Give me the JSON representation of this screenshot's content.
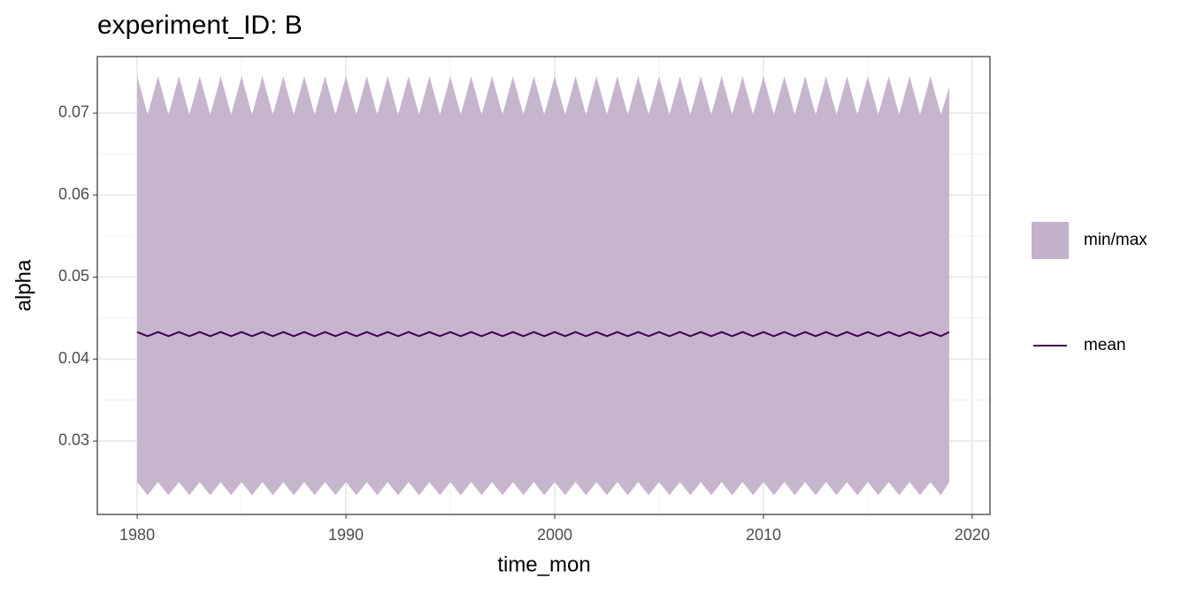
{
  "chart_data": {
    "type": "ribbon-line",
    "title": "experiment_ID: B",
    "x_label": "time_mon",
    "y_label": "alpha",
    "xlim": [
      1978.09,
      2020.85
    ],
    "ylim": [
      0.02105,
      0.0769
    ],
    "xticks": [
      1980,
      1990,
      2000,
      2010,
      2020
    ],
    "yticks": [
      0.03,
      0.04,
      0.05,
      0.06,
      0.07
    ],
    "grid": true,
    "x": [
      1980,
      1980.5,
      1981,
      1981.5,
      1982,
      1982.5,
      1983,
      1983.5,
      1984,
      1984.5,
      1985,
      1985.5,
      1986,
      1986.5,
      1987,
      1987.5,
      1988,
      1988.5,
      1989,
      1989.5,
      1990,
      1990.5,
      1991,
      1991.5,
      1992,
      1992.5,
      1993,
      1993.5,
      1994,
      1994.5,
      1995,
      1995.5,
      1996,
      1996.5,
      1997,
      1997.5,
      1998,
      1998.5,
      1999,
      1999.5,
      2000,
      2000.5,
      2001,
      2001.5,
      2002,
      2002.5,
      2003,
      2003.5,
      2004,
      2004.5,
      2005,
      2005.5,
      2006,
      2006.5,
      2007,
      2007.5,
      2008,
      2008.5,
      2009,
      2009.5,
      2010,
      2010.5,
      2011,
      2011.5,
      2012,
      2012.5,
      2013,
      2013.5,
      2014,
      2014.5,
      2015,
      2015.5,
      2016,
      2016.5,
      2017,
      2017.5,
      2018,
      2018.5,
      2018.9
    ],
    "series": [
      {
        "name": "min/max",
        "color": "#c4b1cb",
        "upper": [
          0.0745,
          0.0698,
          0.0745,
          0.0698,
          0.0745,
          0.0698,
          0.0745,
          0.0698,
          0.0745,
          0.0698,
          0.0745,
          0.0698,
          0.0745,
          0.0698,
          0.0745,
          0.0698,
          0.0745,
          0.0698,
          0.0745,
          0.0698,
          0.0745,
          0.0698,
          0.0745,
          0.0698,
          0.0745,
          0.0698,
          0.0745,
          0.0698,
          0.0745,
          0.0698,
          0.0745,
          0.0698,
          0.0745,
          0.0698,
          0.0745,
          0.0698,
          0.0745,
          0.0698,
          0.0745,
          0.0698,
          0.0745,
          0.0698,
          0.0745,
          0.0698,
          0.0745,
          0.0698,
          0.0745,
          0.0698,
          0.0745,
          0.0698,
          0.0745,
          0.0698,
          0.0745,
          0.0698,
          0.0745,
          0.0698,
          0.0745,
          0.0698,
          0.0745,
          0.0698,
          0.0745,
          0.0698,
          0.0745,
          0.0698,
          0.0745,
          0.0698,
          0.0745,
          0.0698,
          0.0745,
          0.0698,
          0.0745,
          0.0698,
          0.0745,
          0.0698,
          0.0745,
          0.0698,
          0.0745,
          0.0698,
          0.0732
        ],
        "lower": [
          0.025,
          0.0234,
          0.025,
          0.0234,
          0.025,
          0.0234,
          0.025,
          0.0234,
          0.025,
          0.0234,
          0.025,
          0.0234,
          0.025,
          0.0234,
          0.025,
          0.0234,
          0.025,
          0.0234,
          0.025,
          0.0234,
          0.025,
          0.0234,
          0.025,
          0.0234,
          0.025,
          0.0234,
          0.025,
          0.0234,
          0.025,
          0.0234,
          0.025,
          0.0234,
          0.025,
          0.0234,
          0.025,
          0.0234,
          0.025,
          0.0234,
          0.025,
          0.0234,
          0.025,
          0.0234,
          0.025,
          0.0234,
          0.025,
          0.0234,
          0.025,
          0.0234,
          0.025,
          0.0234,
          0.025,
          0.0234,
          0.025,
          0.0234,
          0.025,
          0.0234,
          0.025,
          0.0234,
          0.025,
          0.0234,
          0.025,
          0.0234,
          0.025,
          0.0234,
          0.025,
          0.0234,
          0.025,
          0.0234,
          0.025,
          0.0234,
          0.025,
          0.0234,
          0.025,
          0.0234,
          0.025,
          0.0234,
          0.025,
          0.0234,
          0.025
        ]
      },
      {
        "name": "mean",
        "color": "#440154",
        "values": [
          0.0433,
          0.0428,
          0.0433,
          0.0428,
          0.0433,
          0.0428,
          0.0433,
          0.0428,
          0.0433,
          0.0428,
          0.0433,
          0.0428,
          0.0433,
          0.0428,
          0.0433,
          0.0428,
          0.0433,
          0.0428,
          0.0433,
          0.0428,
          0.0433,
          0.0428,
          0.0433,
          0.0428,
          0.0433,
          0.0428,
          0.0433,
          0.0428,
          0.0433,
          0.0428,
          0.0433,
          0.0428,
          0.0433,
          0.0428,
          0.0433,
          0.0428,
          0.0433,
          0.0428,
          0.0433,
          0.0428,
          0.0433,
          0.0428,
          0.0433,
          0.0428,
          0.0433,
          0.0428,
          0.0433,
          0.0428,
          0.0433,
          0.0428,
          0.0433,
          0.0428,
          0.0433,
          0.0428,
          0.0433,
          0.0428,
          0.0433,
          0.0428,
          0.0433,
          0.0428,
          0.0433,
          0.0428,
          0.0433,
          0.0428,
          0.0433,
          0.0428,
          0.0433,
          0.0428,
          0.0433,
          0.0428,
          0.0433,
          0.0428,
          0.0433,
          0.0428,
          0.0433,
          0.0428,
          0.0433,
          0.0428,
          0.0433
        ]
      }
    ]
  }
}
